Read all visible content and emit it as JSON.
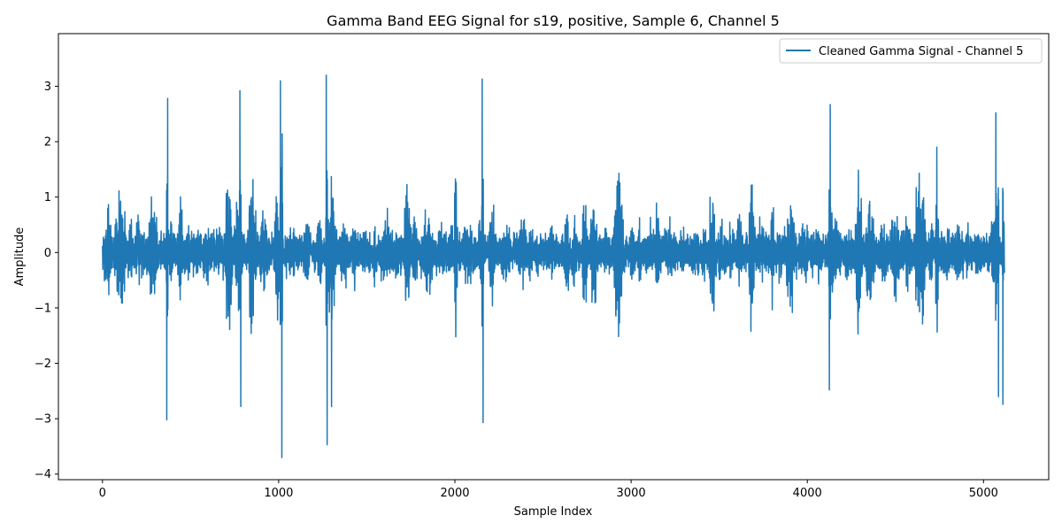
{
  "chart_data": {
    "type": "line",
    "title": "Gamma Band EEG Signal for s19, positive, Sample 6, Channel 5",
    "xlabel": "Sample Index",
    "ylabel": "Amplitude",
    "xlim": [
      -250,
      5370
    ],
    "ylim": [
      -4.1,
      3.95
    ],
    "xticks": [
      0,
      1000,
      2000,
      3000,
      4000,
      5000
    ],
    "xtick_labels": [
      "0",
      "1000",
      "2000",
      "3000",
      "4000",
      "5000"
    ],
    "yticks": [
      -4,
      -3,
      -2,
      -1,
      0,
      1,
      2,
      3
    ],
    "ytick_labels": [
      "−4",
      "−3",
      "−2",
      "−1",
      "0",
      "1",
      "2",
      "3"
    ],
    "grid": false,
    "legend_position": "upper-right",
    "series": [
      {
        "name": "Cleaned Gamma Signal - Channel 5",
        "color": "#1f77b4",
        "n_samples": 5120,
        "x_range": [
          0,
          5119
        ],
        "noted_extremes": [
          {
            "x": 365,
            "y": -3.02
          },
          {
            "x": 370,
            "y": 2.78
          },
          {
            "x": 780,
            "y": 2.92
          },
          {
            "x": 785,
            "y": -2.78
          },
          {
            "x": 1010,
            "y": 3.1
          },
          {
            "x": 1020,
            "y": 3.62
          },
          {
            "x": 1018,
            "y": -3.7
          },
          {
            "x": 1270,
            "y": 3.2
          },
          {
            "x": 1275,
            "y": -3.47
          },
          {
            "x": 1300,
            "y": -2.78
          },
          {
            "x": 2155,
            "y": 3.13
          },
          {
            "x": 2160,
            "y": -3.07
          },
          {
            "x": 4130,
            "y": 2.67
          },
          {
            "x": 4125,
            "y": -2.48
          },
          {
            "x": 5070,
            "y": 2.52
          },
          {
            "x": 5085,
            "y": -2.6
          },
          {
            "x": 5110,
            "y": -2.74
          }
        ]
      }
    ]
  }
}
